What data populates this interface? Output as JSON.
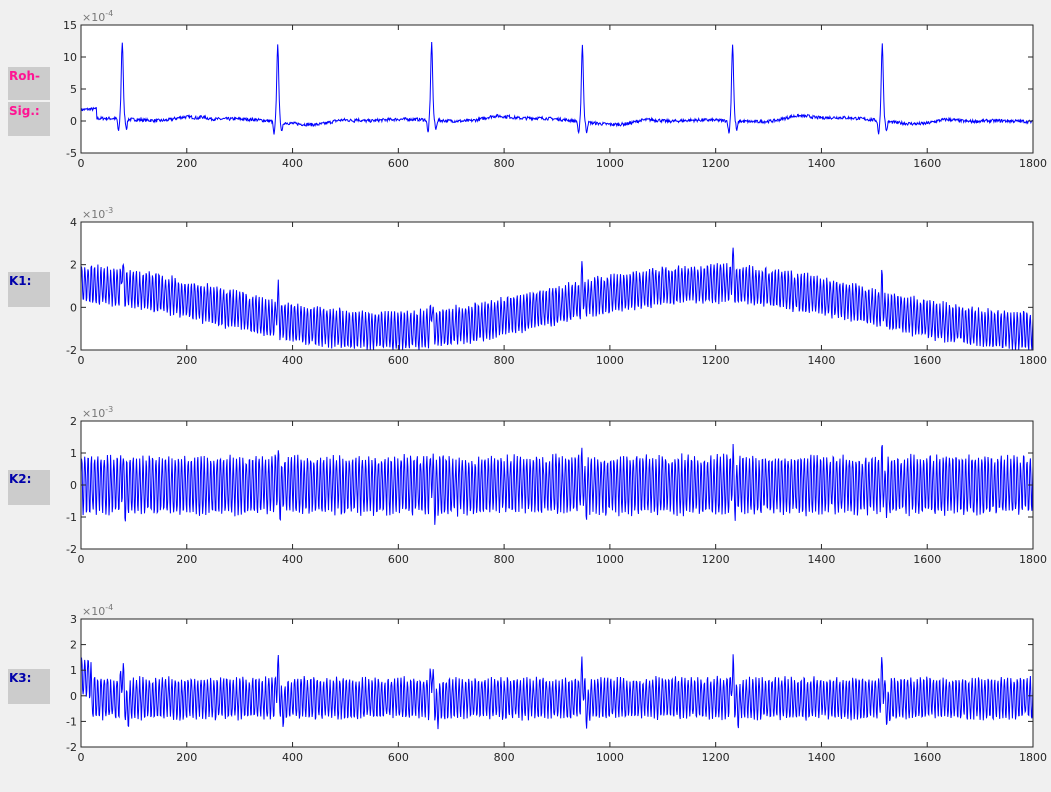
{
  "labels": [
    {
      "text": "Roh-",
      "color": "#ff1493"
    },
    {
      "text": "Sig.:",
      "color": "#ff1493"
    },
    {
      "text": "K1:",
      "color": "#0000aa"
    },
    {
      "text": "K2:",
      "color": "#0000aa"
    },
    {
      "text": "K3:",
      "color": "#0000aa"
    }
  ],
  "chart_data": [
    {
      "type": "line",
      "xlim": [
        0,
        1800
      ],
      "ylim": [
        -5,
        15
      ],
      "yticks": [
        -5,
        0,
        5,
        10,
        15
      ],
      "xticks": [
        0,
        200,
        400,
        600,
        800,
        1000,
        1200,
        1400,
        1600,
        1800
      ],
      "exponent": "×10",
      "exponent_power": "-4",
      "line_color": "#0000ff",
      "r_peaks": [
        78,
        372,
        663,
        948,
        1232,
        1515
      ],
      "r_peak_amplitude": 12,
      "baseline": 0
    },
    {
      "type": "line",
      "xlim": [
        0,
        1800
      ],
      "ylim": [
        -2,
        4
      ],
      "yticks": [
        -2,
        0,
        2,
        4
      ],
      "xticks": [
        0,
        200,
        400,
        600,
        800,
        1000,
        1200,
        1400,
        1600,
        1800
      ],
      "exponent": "×10",
      "exponent_power": "-3",
      "line_color": "#0000ff",
      "oscillation_amplitude": 0.9,
      "baseline_trend": {
        "max": 1.1,
        "max_at": 1190,
        "min": -1.1,
        "min_at": 580
      }
    },
    {
      "type": "line",
      "xlim": [
        0,
        1800
      ],
      "ylim": [
        -2,
        2
      ],
      "yticks": [
        -2,
        -1,
        0,
        1,
        2
      ],
      "xticks": [
        0,
        200,
        400,
        600,
        800,
        1000,
        1200,
        1400,
        1600,
        1800
      ],
      "exponent": "×10",
      "exponent_power": "-3",
      "line_color": "#0000ff",
      "oscillation_amplitude": 0.9
    },
    {
      "type": "line",
      "xlim": [
        0,
        1800
      ],
      "ylim": [
        -2,
        3
      ],
      "yticks": [
        -2,
        -1,
        0,
        1,
        2,
        3
      ],
      "xticks": [
        0,
        200,
        400,
        600,
        800,
        1000,
        1200,
        1400,
        1600,
        1800
      ],
      "exponent": "×10",
      "exponent_power": "-4",
      "line_color": "#0000ff",
      "oscillation_amplitude": 0.8
    }
  ]
}
